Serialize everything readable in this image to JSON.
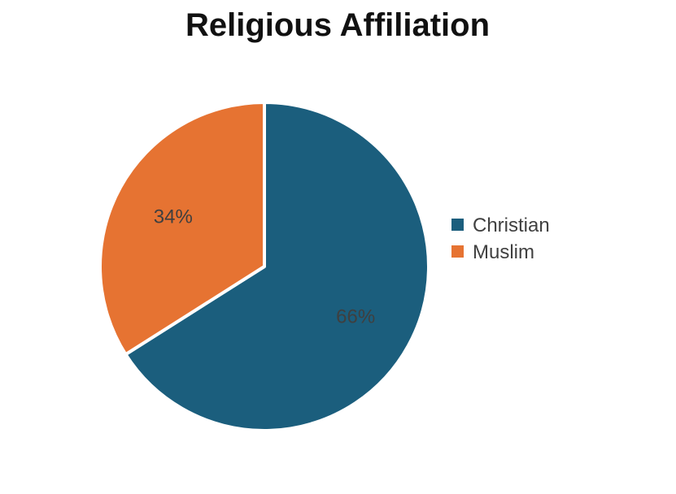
{
  "chart_data": {
    "type": "pie",
    "title": "Religious Affiliation",
    "categories": [
      "Christian",
      "Muslim"
    ],
    "values": [
      66,
      34
    ],
    "labels": [
      "66%",
      "34%"
    ],
    "colors": [
      "#1b5e7d",
      "#e67332"
    ],
    "legend_position": "right",
    "start_direction": "top",
    "direction": "clockwise"
  }
}
